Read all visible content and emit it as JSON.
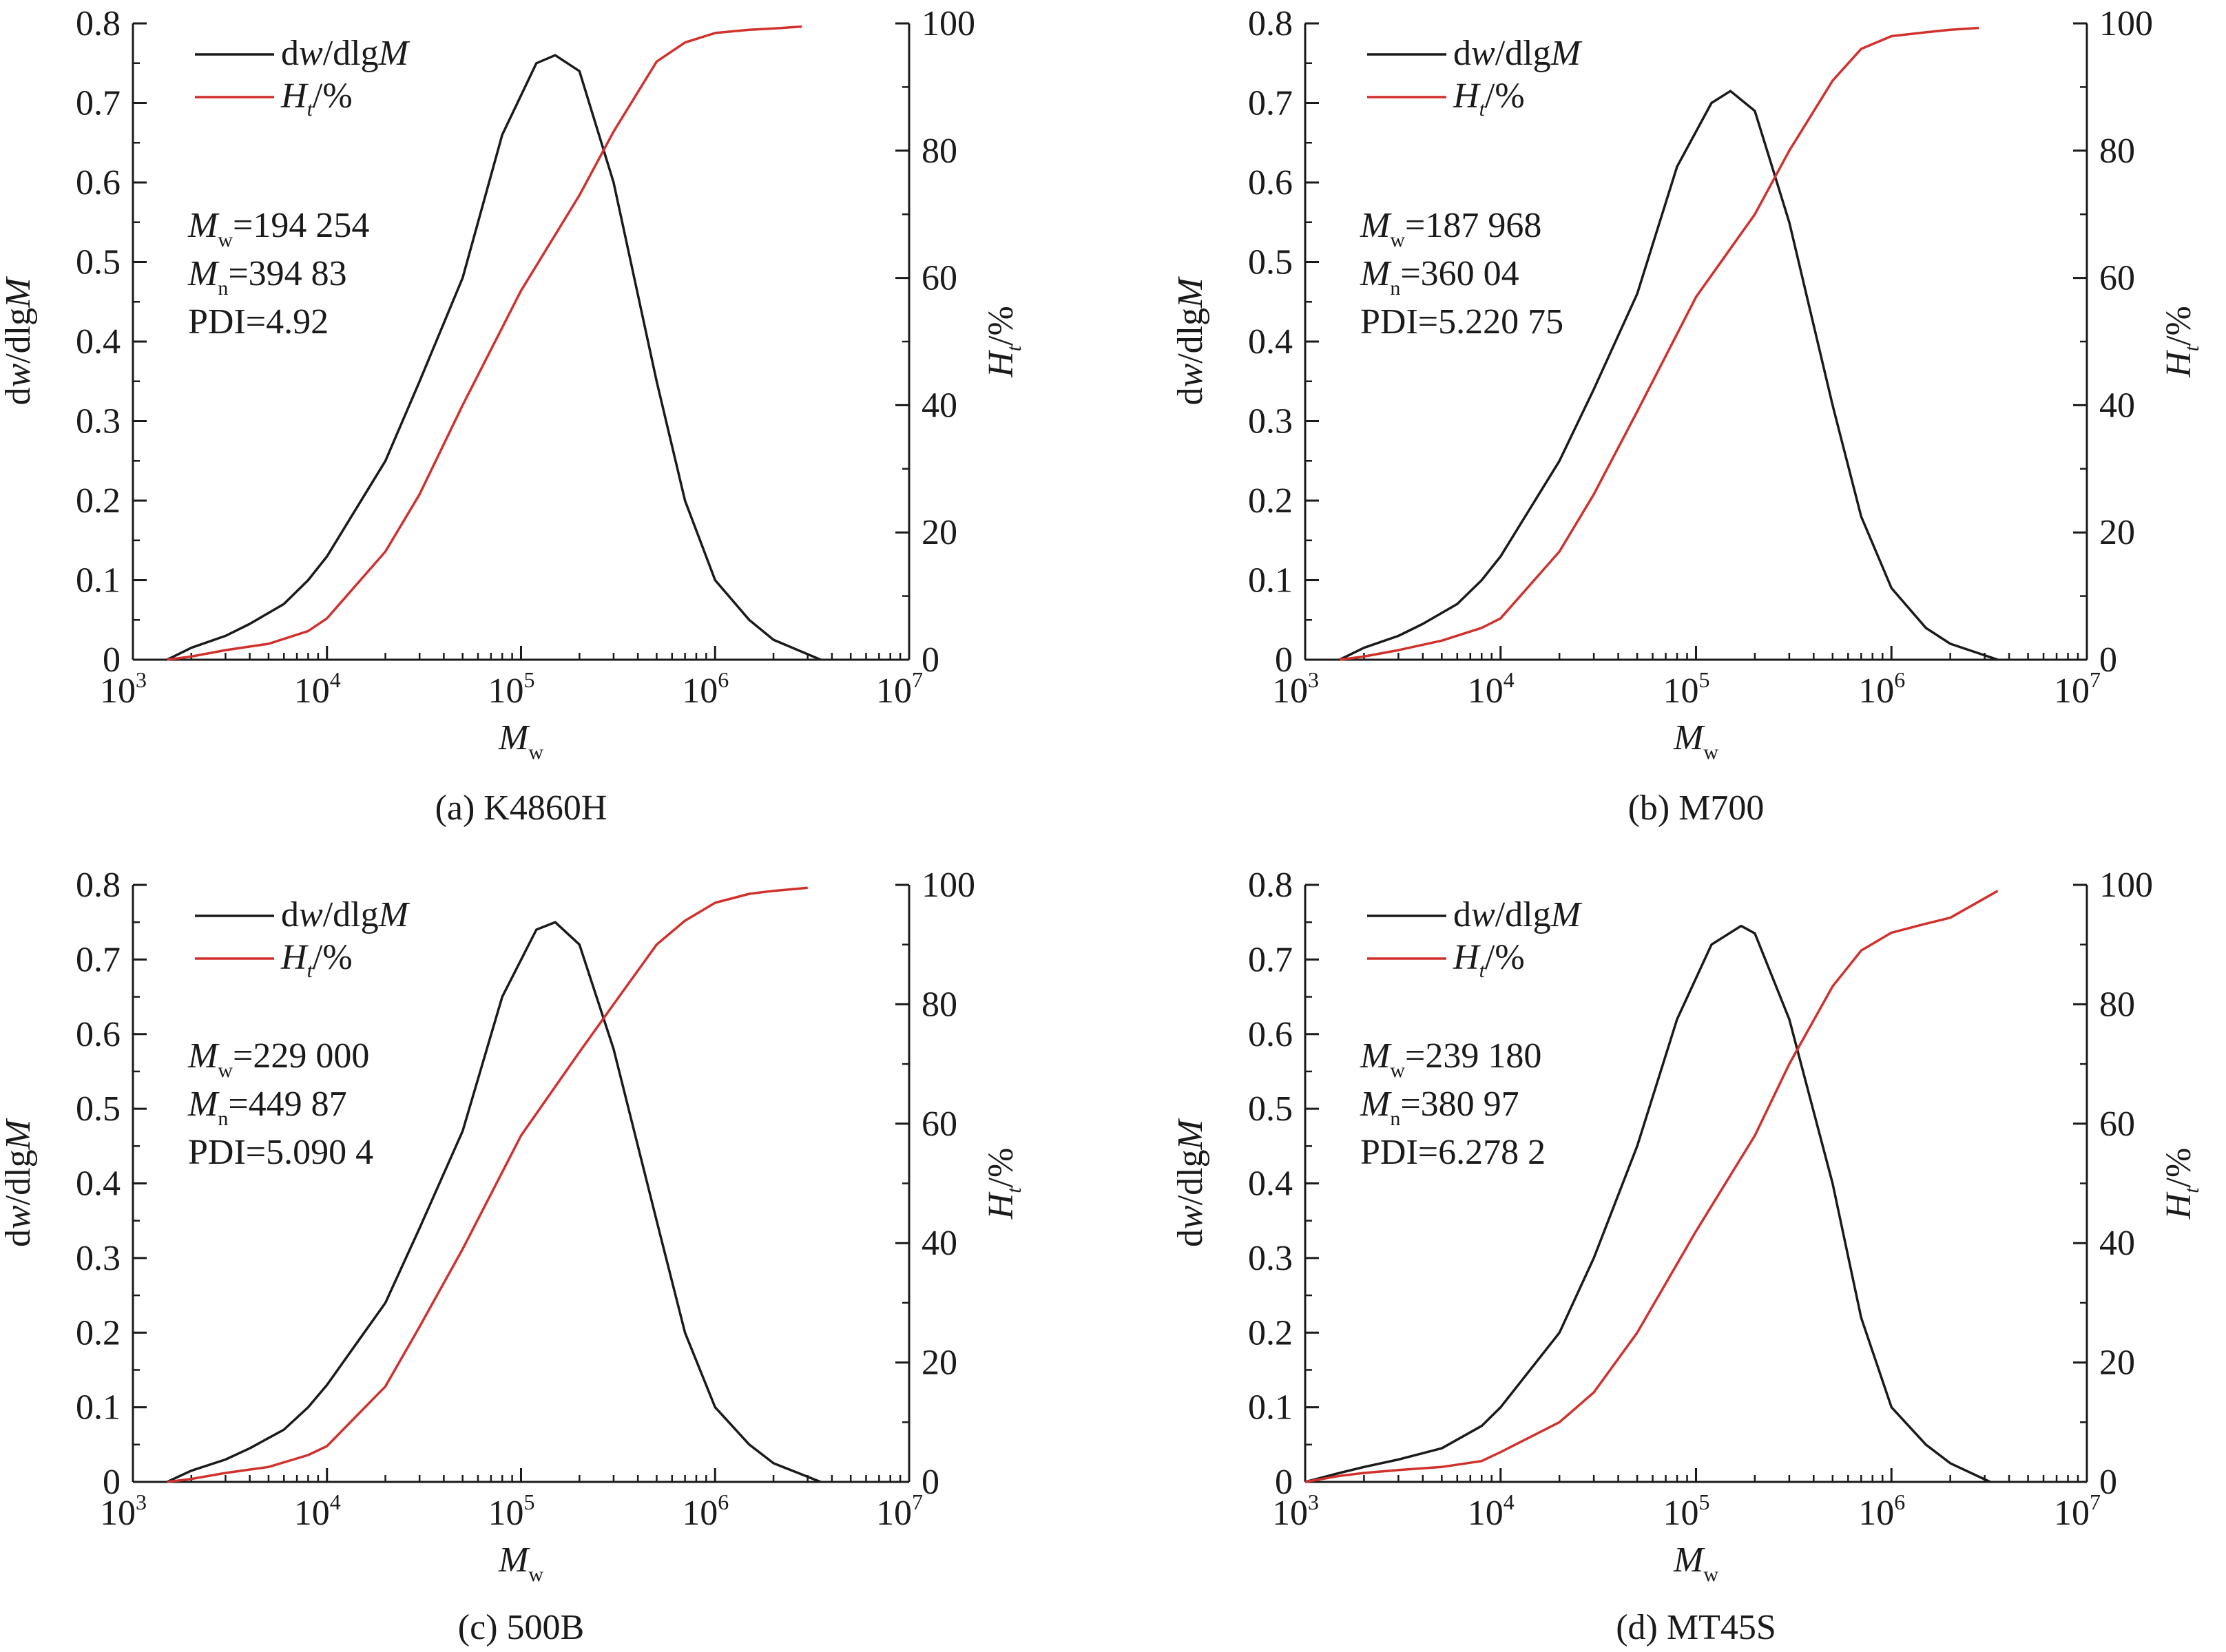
{
  "colors": {
    "dw": "#1a1a1a",
    "ht": "#d0312d",
    "axis": "#1a1a1a"
  },
  "chart_data": [
    {
      "type": "line",
      "caption": "(a) K4860H",
      "xlabel_main": "M",
      "xlabel_sub": "w",
      "ylabel_left_parts": [
        "d",
        "w",
        "/dlg",
        "M"
      ],
      "ylabel_right_main": "H",
      "ylabel_right_sub": "t",
      "ylabel_right_rest": "/%",
      "x_scale": "log",
      "xlim": [
        1000,
        10000000
      ],
      "xticks": [
        {
          "exp": "3"
        },
        {
          "exp": "4"
        },
        {
          "exp": "5"
        },
        {
          "exp": "6"
        },
        {
          "exp": "7"
        }
      ],
      "ylim_left": [
        0,
        0.8
      ],
      "yticks_left": [
        "0",
        "0.1",
        "0.2",
        "0.3",
        "0.4",
        "0.5",
        "0.6",
        "0.7",
        "0.8"
      ],
      "ylim_right": [
        0,
        100
      ],
      "yticks_right": [
        "0",
        "20",
        "40",
        "60",
        "80",
        "100"
      ],
      "legend": [
        {
          "parts": [
            "d",
            "w",
            "/dlg",
            "M"
          ]
        },
        {
          "main": "H",
          "sub": "t",
          "rest": "/%"
        }
      ],
      "annotation": {
        "mw_main": "M",
        "mw_sub": "w",
        "mw_value": "=194 254",
        "mn_main": "M",
        "mn_sub": "n",
        "mn_value": "=394 83",
        "pdi": "PDI=4.92"
      },
      "series": [
        {
          "name": "dw/dlgM",
          "axis": "left",
          "x": [
            1500,
            2000,
            3000,
            4000,
            6000,
            8000,
            10000,
            20000,
            30000,
            50000,
            80000,
            120000,
            150000,
            200000,
            300000,
            500000,
            700000,
            1000000,
            1500000,
            2000000,
            3500000
          ],
          "y": [
            0.0,
            0.015,
            0.03,
            0.045,
            0.07,
            0.1,
            0.13,
            0.25,
            0.35,
            0.48,
            0.66,
            0.75,
            0.76,
            0.74,
            0.6,
            0.35,
            0.2,
            0.1,
            0.05,
            0.025,
            0.0
          ]
        },
        {
          "name": "Ht/%",
          "axis": "right",
          "x": [
            1500,
            2000,
            3000,
            5000,
            8000,
            10000,
            20000,
            30000,
            50000,
            100000,
            200000,
            300000,
            500000,
            700000,
            1000000,
            1500000,
            2000000,
            2800000
          ],
          "y": [
            0,
            0.5,
            1.5,
            2.5,
            4.5,
            6.5,
            17,
            26,
            40,
            58,
            73,
            83,
            94,
            97,
            98.5,
            99,
            99.2,
            99.5
          ]
        }
      ]
    },
    {
      "type": "line",
      "caption": "(b) M700",
      "xlabel_main": "M",
      "xlabel_sub": "w",
      "ylabel_left_parts": [
        "d",
        "w",
        "/dlg",
        "M"
      ],
      "ylabel_right_main": "H",
      "ylabel_right_sub": "t",
      "ylabel_right_rest": "/%",
      "x_scale": "log",
      "xlim": [
        1000,
        10000000
      ],
      "xticks": [
        {
          "exp": "3"
        },
        {
          "exp": "4"
        },
        {
          "exp": "5"
        },
        {
          "exp": "6"
        },
        {
          "exp": "7"
        }
      ],
      "ylim_left": [
        0,
        0.8
      ],
      "yticks_left": [
        "0",
        "0.1",
        "0.2",
        "0.3",
        "0.4",
        "0.5",
        "0.6",
        "0.7",
        "0.8"
      ],
      "ylim_right": [
        0,
        100
      ],
      "yticks_right": [
        "0",
        "20",
        "40",
        "60",
        "80",
        "100"
      ],
      "legend": [
        {
          "parts": [
            "d",
            "w",
            "/dlg",
            "M"
          ]
        },
        {
          "main": "H",
          "sub": "t",
          "rest": "/%"
        }
      ],
      "annotation": {
        "mw_main": "M",
        "mw_sub": "w",
        "mw_value": "=187 968",
        "mn_main": "M",
        "mn_sub": "n",
        "mn_value": "=360 04",
        "pdi": "PDI=5.220 75"
      },
      "series": [
        {
          "name": "dw/dlgM",
          "axis": "left",
          "x": [
            1500,
            2000,
            3000,
            4000,
            6000,
            8000,
            10000,
            20000,
            30000,
            50000,
            80000,
            120000,
            150000,
            200000,
            300000,
            500000,
            700000,
            1000000,
            1500000,
            2000000,
            3500000
          ],
          "y": [
            0.0,
            0.015,
            0.03,
            0.045,
            0.07,
            0.1,
            0.13,
            0.25,
            0.34,
            0.46,
            0.62,
            0.7,
            0.715,
            0.69,
            0.55,
            0.32,
            0.18,
            0.09,
            0.04,
            0.02,
            0.0
          ]
        },
        {
          "name": "Ht/%",
          "axis": "right",
          "x": [
            1500,
            2000,
            3000,
            5000,
            8000,
            10000,
            20000,
            30000,
            50000,
            100000,
            200000,
            300000,
            500000,
            700000,
            1000000,
            1500000,
            2000000,
            2800000
          ],
          "y": [
            0,
            0.5,
            1.5,
            3,
            5,
            6.5,
            17,
            26,
            39,
            57,
            70,
            80,
            91,
            96,
            98,
            98.6,
            99,
            99.3
          ]
        }
      ]
    },
    {
      "type": "line",
      "caption": "(c) 500B",
      "xlabel_main": "M",
      "xlabel_sub": "w",
      "ylabel_left_parts": [
        "d",
        "w",
        "/dlg",
        "M"
      ],
      "ylabel_right_main": "H",
      "ylabel_right_sub": "t",
      "ylabel_right_rest": "/%",
      "x_scale": "log",
      "xlim": [
        1000,
        10000000
      ],
      "xticks": [
        {
          "exp": "3"
        },
        {
          "exp": "4"
        },
        {
          "exp": "5"
        },
        {
          "exp": "6"
        },
        {
          "exp": "7"
        }
      ],
      "ylim_left": [
        0,
        0.8
      ],
      "yticks_left": [
        "0",
        "0.1",
        "0.2",
        "0.3",
        "0.4",
        "0.5",
        "0.6",
        "0.7",
        "0.8"
      ],
      "ylim_right": [
        0,
        100
      ],
      "yticks_right": [
        "0",
        "20",
        "40",
        "60",
        "80",
        "100"
      ],
      "legend": [
        {
          "parts": [
            "d",
            "w",
            "/dlg",
            "M"
          ]
        },
        {
          "main": "H",
          "sub": "t",
          "rest": "/%"
        }
      ],
      "annotation": {
        "mw_main": "M",
        "mw_sub": "w",
        "mw_value": "=229 000",
        "mn_main": "M",
        "mn_sub": "n",
        "mn_value": "=449 87",
        "pdi": "PDI=5.090 4"
      },
      "series": [
        {
          "name": "dw/dlgM",
          "axis": "left",
          "x": [
            1500,
            2000,
            3000,
            4000,
            6000,
            8000,
            10000,
            20000,
            30000,
            50000,
            80000,
            120000,
            150000,
            200000,
            300000,
            500000,
            700000,
            1000000,
            1500000,
            2000000,
            3500000
          ],
          "y": [
            0.0,
            0.015,
            0.03,
            0.045,
            0.07,
            0.1,
            0.13,
            0.24,
            0.34,
            0.47,
            0.65,
            0.74,
            0.75,
            0.72,
            0.58,
            0.35,
            0.2,
            0.1,
            0.05,
            0.025,
            0.0
          ]
        },
        {
          "name": "Ht/%",
          "axis": "right",
          "x": [
            1500,
            2000,
            3000,
            5000,
            8000,
            10000,
            20000,
            30000,
            50000,
            100000,
            200000,
            300000,
            500000,
            700000,
            1000000,
            1500000,
            2000000,
            3000000
          ],
          "y": [
            0,
            0.5,
            1.5,
            2.5,
            4.5,
            6,
            16,
            26,
            39,
            58,
            72,
            80,
            90,
            94,
            97,
            98.5,
            99,
            99.5
          ]
        }
      ]
    },
    {
      "type": "line",
      "caption": "(d) MT45S",
      "xlabel_main": "M",
      "xlabel_sub": "w",
      "ylabel_left_parts": [
        "d",
        "w",
        "/dlg",
        "M"
      ],
      "ylabel_right_main": "H",
      "ylabel_right_sub": "t",
      "ylabel_right_rest": "/%",
      "x_scale": "log",
      "xlim": [
        1000,
        10000000
      ],
      "xticks": [
        {
          "exp": "3"
        },
        {
          "exp": "4"
        },
        {
          "exp": "5"
        },
        {
          "exp": "6"
        },
        {
          "exp": "7"
        }
      ],
      "ylim_left": [
        0,
        0.8
      ],
      "yticks_left": [
        "0",
        "0.1",
        "0.2",
        "0.3",
        "0.4",
        "0.5",
        "0.6",
        "0.7",
        "0.8"
      ],
      "ylim_right": [
        0,
        100
      ],
      "yticks_right": [
        "0",
        "20",
        "40",
        "60",
        "80",
        "100"
      ],
      "legend": [
        {
          "parts": [
            "d",
            "w",
            "/dlg",
            "M"
          ]
        },
        {
          "main": "H",
          "sub": "t",
          "rest": "/%"
        }
      ],
      "annotation": {
        "mw_main": "M",
        "mw_sub": "w",
        "mw_value": "=239 180",
        "mn_main": "M",
        "mn_sub": "n",
        "mn_value": "=380 97",
        "pdi": "PDI=6.278 2"
      },
      "series": [
        {
          "name": "dw/dlgM",
          "axis": "left",
          "x": [
            1000,
            1500,
            2000,
            3000,
            5000,
            8000,
            10000,
            20000,
            30000,
            50000,
            80000,
            120000,
            170000,
            200000,
            300000,
            500000,
            700000,
            1000000,
            1500000,
            2000000,
            3200000
          ],
          "y": [
            0.0,
            0.012,
            0.02,
            0.03,
            0.045,
            0.075,
            0.1,
            0.2,
            0.3,
            0.45,
            0.62,
            0.72,
            0.745,
            0.735,
            0.62,
            0.4,
            0.22,
            0.1,
            0.05,
            0.025,
            0.0
          ]
        },
        {
          "name": "Ht/%",
          "axis": "right",
          "x": [
            1000,
            1500,
            2000,
            3000,
            5000,
            8000,
            10000,
            20000,
            30000,
            50000,
            100000,
            200000,
            300000,
            500000,
            700000,
            1000000,
            1500000,
            2000000,
            3500000
          ],
          "y": [
            0,
            1,
            1.5,
            2,
            2.5,
            3.5,
            5,
            10,
            15,
            25,
            42,
            58,
            70,
            83,
            89,
            92,
            93.5,
            94.5,
            99
          ]
        }
      ]
    }
  ]
}
